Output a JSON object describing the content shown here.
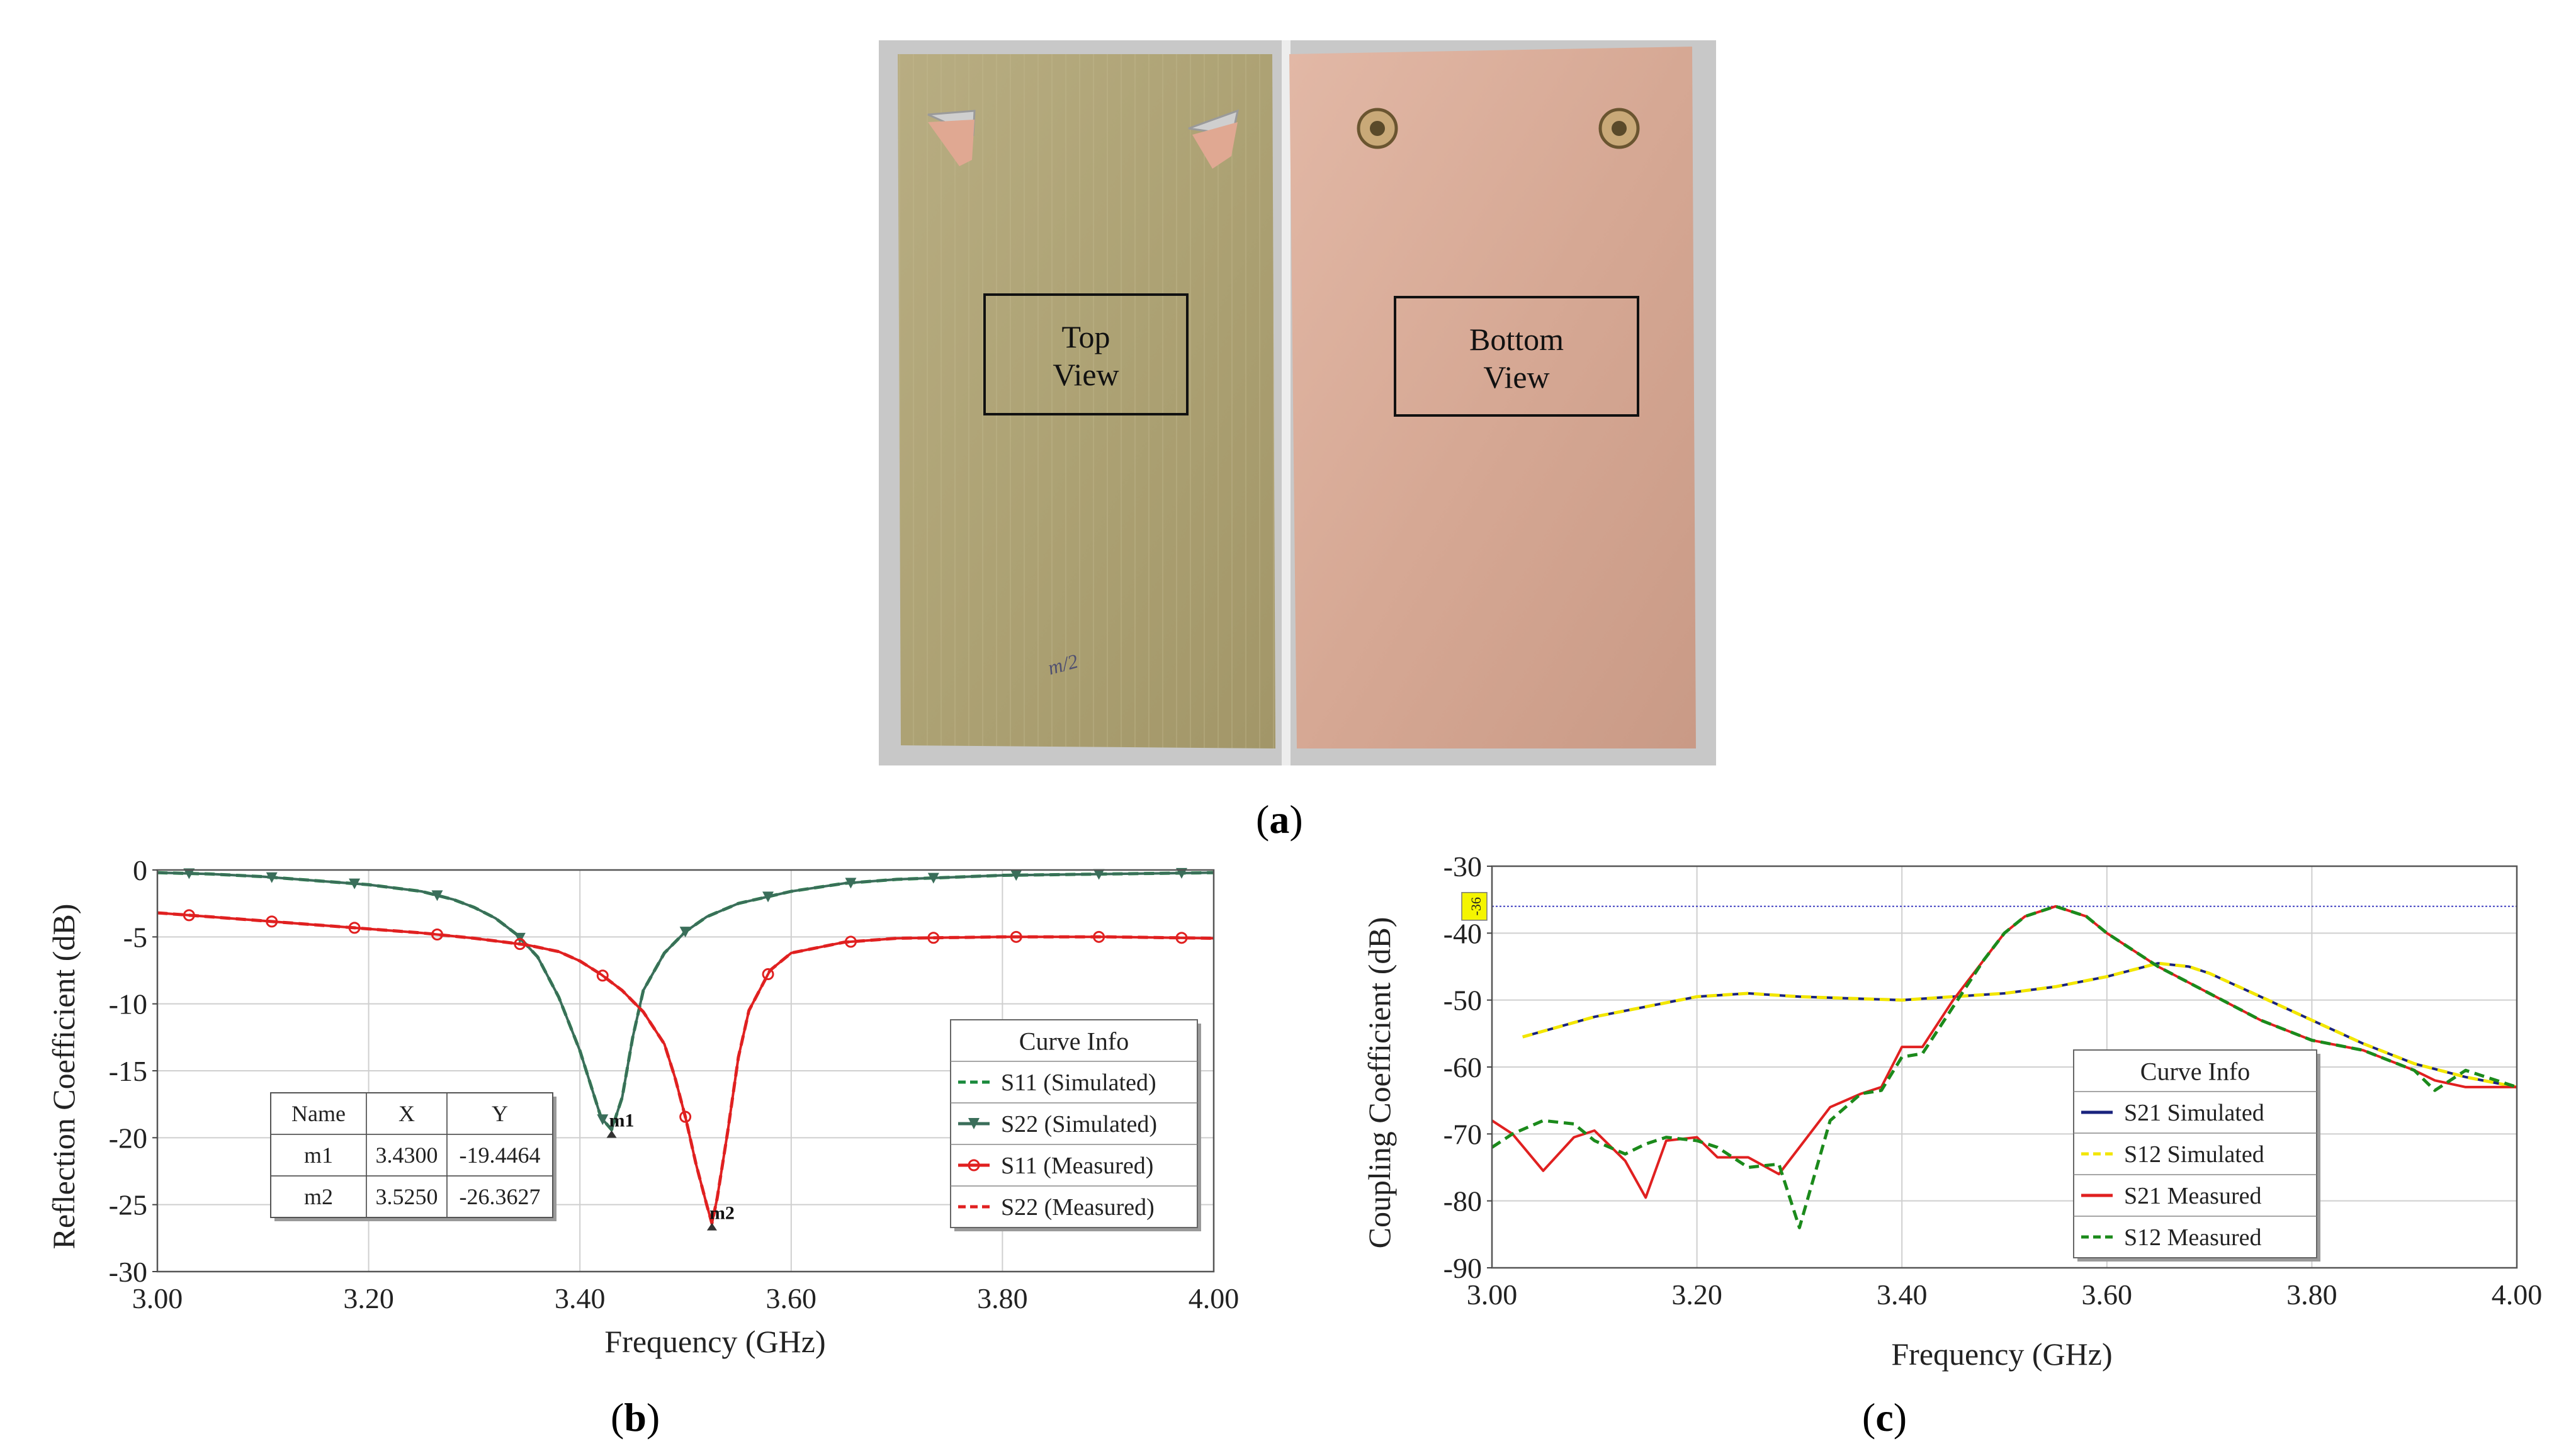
{
  "figure": {
    "panel_a": {
      "label": "a",
      "top_view": [
        "Top",
        "View"
      ],
      "bottom_view": [
        "Bottom",
        "View"
      ],
      "pcb_scribble": "m/2"
    },
    "panel_b": {
      "label": "b"
    },
    "panel_c": {
      "label": "c"
    }
  },
  "chart_data": [
    {
      "type": "line",
      "title": "",
      "xlabel": "Frequency (GHz)",
      "ylabel": "Reflection Coefficient (dB)",
      "xlim": [
        3.0,
        4.0
      ],
      "ylim": [
        -30,
        0
      ],
      "xticks": [
        "3.00",
        "3.20",
        "3.40",
        "3.60",
        "3.80",
        "4.00"
      ],
      "yticks": [
        "0",
        "-5",
        "-10",
        "-15",
        "-20",
        "-25",
        "-30"
      ],
      "grid": true,
      "legend": {
        "title": "Curve Info",
        "placement": "bottom-right"
      },
      "series": [
        {
          "name": "S11 (Simulated)",
          "color": "#1a8a3c",
          "style": "dashed",
          "x": [
            3.0,
            3.05,
            3.1,
            3.15,
            3.2,
            3.25,
            3.28,
            3.3,
            3.32,
            3.34,
            3.36,
            3.38,
            3.4,
            3.41,
            3.42,
            3.43,
            3.44,
            3.45,
            3.46,
            3.48,
            3.5,
            3.52,
            3.55,
            3.6,
            3.65,
            3.7,
            3.8,
            3.9,
            4.0
          ],
          "y": [
            -0.2,
            -0.3,
            -0.5,
            -0.8,
            -1.1,
            -1.6,
            -2.2,
            -2.8,
            -3.6,
            -4.8,
            -6.5,
            -9.5,
            -13.5,
            -16.0,
            -18.5,
            -19.4,
            -17.0,
            -12.5,
            -9.0,
            -6.2,
            -4.6,
            -3.5,
            -2.5,
            -1.6,
            -1.0,
            -0.7,
            -0.4,
            -0.3,
            -0.2
          ]
        },
        {
          "name": "S22 (Simulated)",
          "color": "#3a6e5a",
          "style": "solid-triangle",
          "x": [
            3.0,
            3.05,
            3.1,
            3.15,
            3.2,
            3.25,
            3.28,
            3.3,
            3.32,
            3.34,
            3.36,
            3.38,
            3.4,
            3.41,
            3.42,
            3.43,
            3.44,
            3.45,
            3.46,
            3.48,
            3.5,
            3.52,
            3.55,
            3.6,
            3.65,
            3.7,
            3.8,
            3.9,
            4.0
          ],
          "y": [
            -0.2,
            -0.3,
            -0.5,
            -0.8,
            -1.1,
            -1.6,
            -2.2,
            -2.8,
            -3.6,
            -4.8,
            -6.5,
            -9.5,
            -13.5,
            -16.0,
            -18.5,
            -19.4,
            -17.0,
            -12.5,
            -9.0,
            -6.2,
            -4.6,
            -3.5,
            -2.5,
            -1.6,
            -1.0,
            -0.7,
            -0.4,
            -0.3,
            -0.2
          ]
        },
        {
          "name": "S11 (Measured)",
          "color": "#e02020",
          "style": "solid-circle",
          "x": [
            3.0,
            3.05,
            3.1,
            3.15,
            3.2,
            3.25,
            3.3,
            3.35,
            3.38,
            3.4,
            3.42,
            3.44,
            3.46,
            3.48,
            3.49,
            3.5,
            3.51,
            3.52,
            3.525,
            3.53,
            3.54,
            3.55,
            3.56,
            3.58,
            3.6,
            3.65,
            3.7,
            3.8,
            3.9,
            4.0
          ],
          "y": [
            -3.2,
            -3.5,
            -3.8,
            -4.1,
            -4.4,
            -4.7,
            -5.1,
            -5.6,
            -6.1,
            -6.8,
            -7.8,
            -9.0,
            -10.6,
            -13.0,
            -15.5,
            -18.5,
            -22.0,
            -25.0,
            -26.4,
            -24.5,
            -19.5,
            -14.0,
            -10.5,
            -7.5,
            -6.2,
            -5.4,
            -5.1,
            -5.0,
            -5.0,
            -5.1
          ]
        },
        {
          "name": "S22 (Measured)",
          "color": "#e02020",
          "style": "dashed",
          "x": [
            3.0,
            3.05,
            3.1,
            3.15,
            3.2,
            3.25,
            3.3,
            3.35,
            3.38,
            3.4,
            3.42,
            3.44,
            3.46,
            3.48,
            3.49,
            3.5,
            3.51,
            3.52,
            3.525,
            3.53,
            3.54,
            3.55,
            3.56,
            3.58,
            3.6,
            3.65,
            3.7,
            3.8,
            3.9,
            4.0
          ],
          "y": [
            -3.2,
            -3.5,
            -3.8,
            -4.1,
            -4.4,
            -4.7,
            -5.1,
            -5.6,
            -6.1,
            -6.8,
            -7.8,
            -9.0,
            -10.6,
            -13.0,
            -15.5,
            -18.5,
            -22.0,
            -25.0,
            -26.4,
            -24.5,
            -19.5,
            -14.0,
            -10.5,
            -7.5,
            -6.2,
            -5.4,
            -5.1,
            -5.0,
            -5.0,
            -5.1
          ]
        }
      ],
      "markers": [
        {
          "name": "m1",
          "x": 3.43,
          "y": -19.4464
        },
        {
          "name": "m2",
          "x": 3.525,
          "y": -26.3627
        }
      ],
      "marker_table": {
        "columns": [
          "Name",
          "X",
          "Y"
        ],
        "rows": [
          [
            "m1",
            "3.4300",
            "-19.4464"
          ],
          [
            "m2",
            "3.5250",
            "-26.3627"
          ]
        ]
      }
    },
    {
      "type": "line",
      "title": "",
      "xlabel": "Frequency (GHz)",
      "ylabel": "Coupling Coefficient (dB)",
      "xlim": [
        3.0,
        4.0
      ],
      "ylim": [
        -90,
        -30
      ],
      "xticks": [
        "3.00",
        "3.20",
        "3.40",
        "3.60",
        "3.80",
        "4.00"
      ],
      "yticks": [
        "-30",
        "-40",
        "-50",
        "-60",
        "-70",
        "-80",
        "-90"
      ],
      "grid": true,
      "reference_line": {
        "y": -36,
        "label": "-36",
        "color": "#4040c0"
      },
      "legend": {
        "title": "Curve Info",
        "placement": "bottom-center"
      },
      "series": [
        {
          "name": "S21 Simulated",
          "color": "#1a237e",
          "style": "solid",
          "x": [
            3.03,
            3.1,
            3.2,
            3.25,
            3.3,
            3.4,
            3.45,
            3.5,
            3.55,
            3.6,
            3.65,
            3.68,
            3.7,
            3.75,
            3.8,
            3.85,
            3.9,
            3.95,
            4.0
          ],
          "y": [
            -55.5,
            -52.5,
            -49.5,
            -49.0,
            -49.5,
            -50.0,
            -49.5,
            -49.0,
            -48.0,
            -46.5,
            -44.5,
            -45.0,
            -46.0,
            -49.5,
            -53.0,
            -56.5,
            -59.5,
            -61.5,
            -63.0
          ]
        },
        {
          "name": "S12 Simulated",
          "color": "#f2e600",
          "style": "dashed",
          "x": [
            3.03,
            3.1,
            3.2,
            3.25,
            3.3,
            3.4,
            3.45,
            3.5,
            3.55,
            3.6,
            3.65,
            3.68,
            3.7,
            3.75,
            3.8,
            3.85,
            3.9,
            3.95,
            4.0
          ],
          "y": [
            -55.5,
            -52.5,
            -49.5,
            -49.0,
            -49.5,
            -50.0,
            -49.5,
            -49.0,
            -48.0,
            -46.5,
            -44.5,
            -45.0,
            -46.0,
            -49.5,
            -53.0,
            -56.5,
            -59.5,
            -61.5,
            -63.0
          ]
        },
        {
          "name": "S21 Measured",
          "color": "#e02020",
          "style": "solid",
          "x": [
            3.0,
            3.02,
            3.05,
            3.08,
            3.1,
            3.13,
            3.15,
            3.17,
            3.2,
            3.22,
            3.25,
            3.28,
            3.3,
            3.33,
            3.36,
            3.38,
            3.4,
            3.42,
            3.45,
            3.48,
            3.5,
            3.52,
            3.55,
            3.58,
            3.6,
            3.65,
            3.7,
            3.75,
            3.8,
            3.85,
            3.9,
            3.92,
            3.95,
            4.0
          ],
          "y": [
            -68,
            -70,
            -75.5,
            -70.5,
            -69.5,
            -74,
            -79.5,
            -71,
            -70.5,
            -73.5,
            -73.5,
            -76,
            -72,
            -66,
            -64,
            -63,
            -57,
            -57,
            -50,
            -44,
            -40,
            -37.5,
            -36,
            -37.5,
            -40,
            -45,
            -49,
            -53,
            -56,
            -57.5,
            -60.5,
            -62,
            -63,
            -63
          ]
        },
        {
          "name": "S12 Measured",
          "color": "#1b8a1b",
          "style": "dashed",
          "x": [
            3.0,
            3.02,
            3.05,
            3.08,
            3.1,
            3.13,
            3.15,
            3.17,
            3.2,
            3.22,
            3.25,
            3.28,
            3.3,
            3.33,
            3.36,
            3.38,
            3.4,
            3.42,
            3.45,
            3.48,
            3.5,
            3.52,
            3.55,
            3.58,
            3.6,
            3.65,
            3.7,
            3.75,
            3.8,
            3.85,
            3.9,
            3.92,
            3.95,
            4.0
          ],
          "y": [
            -72,
            -70,
            -68,
            -68.5,
            -71,
            -73,
            -71.5,
            -70.5,
            -71,
            -72,
            -75,
            -74.5,
            -84,
            -68,
            -64,
            -63.5,
            -58.5,
            -58,
            -51,
            -44,
            -40,
            -37.5,
            -36,
            -37.5,
            -40,
            -45,
            -49,
            -53,
            -56,
            -57.5,
            -60.5,
            -63.5,
            -60.5,
            -63
          ]
        }
      ]
    }
  ]
}
